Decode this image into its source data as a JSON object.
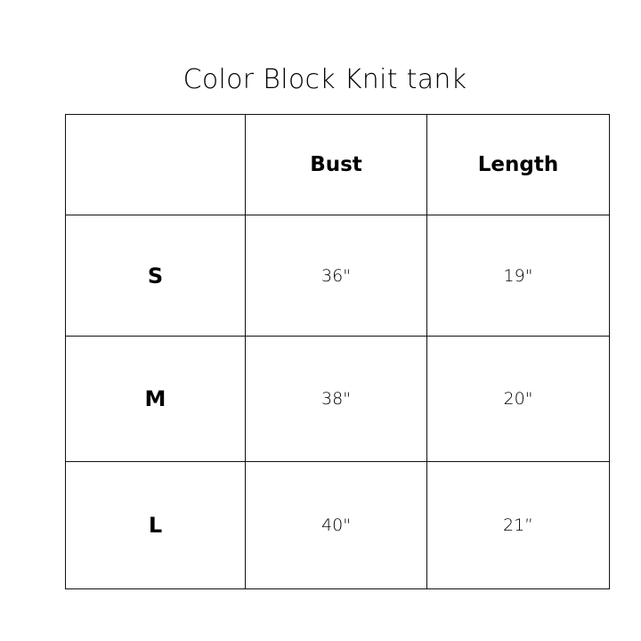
{
  "title": "Color Block Knit tank",
  "table": {
    "headers": [
      "",
      "Bust",
      "Length"
    ],
    "rows": [
      {
        "size": "S",
        "bust": "36\"",
        "length": "19\""
      },
      {
        "size": "M",
        "bust": "38\"",
        "length": "20\""
      },
      {
        "size": "L",
        "bust": "40\"",
        "length": "21”"
      }
    ]
  }
}
